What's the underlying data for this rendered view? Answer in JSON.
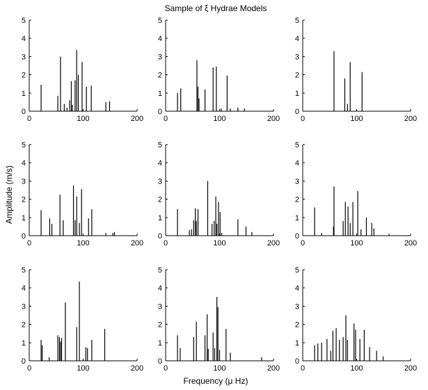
{
  "title": "Sample of ξ Hydrae Models",
  "xlabel": "Frequency (μ Hz)",
  "ylabel": "Amplitude (m/s)",
  "chart_data": [
    {
      "type": "stem",
      "xlim": [
        0,
        200
      ],
      "ylim": [
        0,
        5
      ],
      "xticks": [
        0,
        100,
        200
      ],
      "yticks": [
        0,
        1,
        2,
        3,
        4,
        5
      ],
      "x": [
        22,
        53,
        58,
        65,
        70,
        75,
        78,
        80,
        85,
        88,
        91,
        98,
        106,
        115,
        142,
        149
      ],
      "y": [
        1.45,
        0.85,
        3.0,
        0.4,
        0.2,
        0.6,
        1.65,
        0.35,
        1.7,
        3.35,
        2.0,
        2.7,
        1.35,
        1.4,
        0.5,
        0.55
      ]
    },
    {
      "type": "stem",
      "xlim": [
        0,
        200
      ],
      "ylim": [
        0,
        5
      ],
      "xticks": [
        0,
        100,
        200
      ],
      "yticks": [
        0,
        1,
        2,
        3,
        4,
        5
      ],
      "x": [
        22,
        28,
        58,
        60,
        62,
        73,
        88,
        94,
        103,
        114,
        120,
        134,
        146
      ],
      "y": [
        1.0,
        1.25,
        2.8,
        1.35,
        0.7,
        1.2,
        2.4,
        2.45,
        0.15,
        1.95,
        0.15,
        0.2,
        0.15
      ]
    },
    {
      "type": "stem",
      "xlim": [
        0,
        200
      ],
      "ylim": [
        0,
        5
      ],
      "xticks": [
        0,
        100,
        200
      ],
      "yticks": [
        0,
        1,
        2,
        3,
        4,
        5
      ],
      "x": [
        58,
        78,
        83,
        88,
        110
      ],
      "y": [
        3.3,
        1.8,
        0.4,
        2.7,
        2.15
      ]
    },
    {
      "type": "stem",
      "xlim": [
        0,
        200
      ],
      "ylim": [
        0,
        5
      ],
      "xticks": [
        0,
        100,
        200
      ],
      "yticks": [
        0,
        1,
        2,
        3,
        4,
        5
      ],
      "x": [
        22,
        38,
        42,
        57,
        63,
        82,
        85,
        88,
        93,
        97,
        110,
        116,
        142,
        155,
        158
      ],
      "y": [
        1.4,
        0.95,
        0.65,
        2.25,
        0.85,
        2.75,
        0.85,
        2.15,
        0.7,
        2.55,
        0.95,
        1.45,
        0.15,
        0.15,
        0.2
      ]
    },
    {
      "type": "stem",
      "xlim": [
        0,
        200
      ],
      "ylim": [
        0,
        5
      ],
      "xticks": [
        0,
        100,
        200
      ],
      "yticks": [
        0,
        1,
        2,
        3,
        4,
        5
      ],
      "x": [
        22,
        44,
        48,
        52,
        55,
        57,
        60,
        78,
        86,
        90,
        93,
        95,
        98,
        101,
        104,
        134,
        149,
        160
      ],
      "y": [
        1.45,
        0.3,
        0.35,
        0.85,
        1.5,
        0.8,
        1.45,
        3.0,
        0.65,
        0.8,
        2.15,
        0.65,
        1.85,
        1.3,
        0.15,
        0.9,
        0.5,
        0.2
      ]
    },
    {
      "type": "stem",
      "xlim": [
        0,
        200
      ],
      "ylim": [
        0,
        5
      ],
      "xticks": [
        0,
        100,
        200
      ],
      "yticks": [
        0,
        1,
        2,
        3,
        4,
        5
      ],
      "x": [
        22,
        35,
        57,
        58,
        75,
        79,
        84,
        88,
        93,
        102,
        108,
        118,
        128,
        132,
        160
      ],
      "y": [
        1.55,
        0.15,
        0.5,
        2.7,
        0.8,
        1.85,
        1.6,
        0.7,
        1.85,
        2.45,
        0.35,
        1.0,
        0.7,
        0.4,
        0.1
      ]
    },
    {
      "type": "stem",
      "xlim": [
        0,
        200
      ],
      "ylim": [
        0,
        5
      ],
      "xticks": [
        0,
        100,
        200
      ],
      "yticks": [
        0,
        1,
        2,
        3,
        4,
        5
      ],
      "x": [
        22,
        24,
        37,
        53,
        56,
        58,
        60,
        67,
        88,
        93,
        105,
        108,
        116,
        140
      ],
      "y": [
        1.15,
        0.85,
        0.2,
        1.4,
        1.3,
        1.05,
        1.25,
        3.2,
        1.85,
        4.35,
        0.75,
        0.7,
        1.15,
        1.75
      ]
    },
    {
      "type": "stem",
      "xlim": [
        0,
        200
      ],
      "ylim": [
        0,
        5
      ],
      "xticks": [
        0,
        100,
        200
      ],
      "yticks": [
        0,
        1,
        2,
        3,
        4,
        5
      ],
      "x": [
        22,
        27,
        52,
        57,
        73,
        77,
        79,
        88,
        91,
        95,
        97,
        100,
        112,
        120,
        178
      ],
      "y": [
        1.4,
        0.7,
        1.3,
        2.15,
        1.4,
        2.55,
        0.65,
        1.55,
        0.7,
        3.5,
        2.95,
        0.6,
        1.75,
        0.45,
        0.2
      ]
    },
    {
      "type": "stem",
      "xlim": [
        0,
        200
      ],
      "ylim": [
        0,
        5
      ],
      "xticks": [
        0,
        100,
        200
      ],
      "yticks": [
        0,
        1,
        2,
        3,
        4,
        5
      ],
      "x": [
        22,
        28,
        35,
        45,
        52,
        56,
        62,
        68,
        75,
        80,
        83,
        95,
        98,
        106,
        114,
        124,
        137,
        149
      ],
      "y": [
        0.85,
        0.95,
        1.0,
        1.2,
        0.55,
        1.65,
        1.8,
        1.15,
        1.3,
        2.5,
        1.15,
        2.05,
        1.7,
        1.2,
        1.7,
        0.75,
        0.55,
        0.25
      ]
    }
  ]
}
